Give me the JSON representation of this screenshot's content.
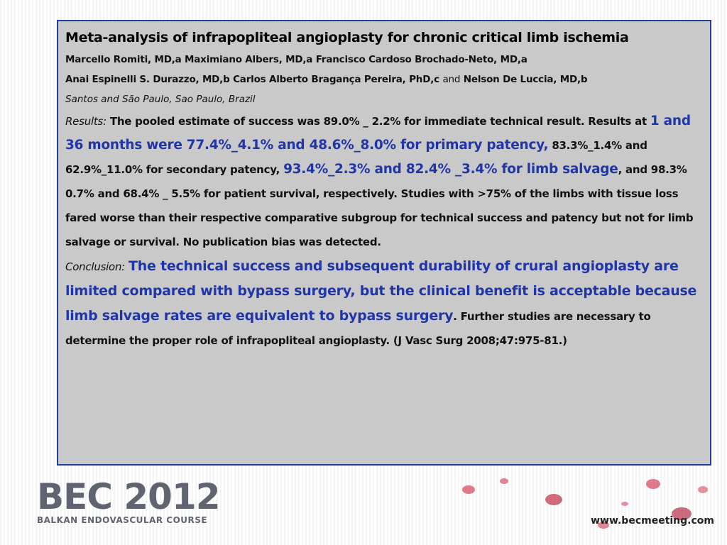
{
  "slide": {
    "title": "Meta-analysis of infrapopliteal angioplasty for chronic critical limb ischemia",
    "authors_line1": "Marcello Romiti, MD,a Maximiano Albers, MD,a Francisco Cardoso Brochado-Neto, MD,a",
    "authors_line2_a": "Anai Espinelli S. Durazzo, MD,b Carlos Alberto Bragança Pereira, PhD,c",
    "authors_line2_and": "and",
    "authors_line2_b": "Nelson De Luccia, MD,b",
    "affiliation": "Santos and São Paulo, Sao Paulo, Brazil",
    "results_label": "Results:",
    "results_1": "The pooled estimate of success was 89.0% _ 2.2% for immediate technical result. Results at",
    "results_2_big": "1 and 36 months were 77.4%_4.1% and 48.6%_8.0% for primary patency,",
    "results_3": "83.3%_1.4% and 62.9%_11.0% for secondary patency,",
    "results_4_big": "93.4%_2.3% and 82.4% _3.4% for limb salvage",
    "results_5": ", and 98.3% 0.7% and 68.4% _ 5.5% for patient survival, respectively. Studies with >75% of the limbs with tissue loss fared worse than their respective comparative subgroup for technical success and patency but not for limb salvage or survival. No publication bias was detected.",
    "conclusion_label": "Conclusion:",
    "conclusion_big": "The technical success and subsequent durability of crural angioplasty are limited compared with bypass surgery, but the clinical benefit is acceptable because limb salvage rates are equivalent to bypass surgery",
    "conclusion_rest": ". Further studies are necessary to determine the proper role of infrapopliteal angioplasty. (J Vasc Surg 2008;47:975-81.)"
  },
  "footer": {
    "logo_main": "BEC 2012",
    "logo_sub": "BALKAN ENDOVASCULAR COURSE",
    "url": "www.becmeeting.com"
  },
  "colors": {
    "accent": "#1f35a8",
    "box_bg": "#c9c9c9",
    "border": "#1f3fa0",
    "cells": "#c8102e"
  }
}
